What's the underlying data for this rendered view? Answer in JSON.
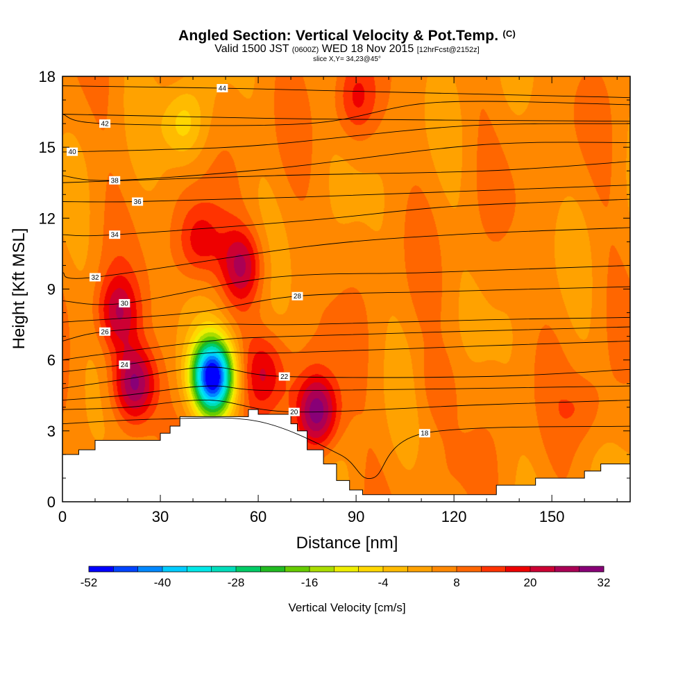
{
  "header": {
    "title_main": "Angled Section: Vertical Velocity & Pot.Temp.",
    "title_suffix": "(C)",
    "valid_prefix": "Valid 1500 JST",
    "valid_utc": "(0600Z)",
    "valid_date": "WED 18 Nov 2015",
    "valid_fcst": "[12hrFcst@2152z]",
    "slice": "slice X,Y= 34,23@45°"
  },
  "chart_data": {
    "type": "heatmap",
    "xlabel": "Distance [nm]",
    "ylabel": "Height [Kft MSL]",
    "xlim": [
      0,
      174
    ],
    "ylim": [
      0,
      18
    ],
    "x_ticks": [
      "0",
      "30",
      "60",
      "90",
      "120",
      "150"
    ],
    "x_tick_values": [
      0,
      30,
      60,
      90,
      120,
      150
    ],
    "y_ticks": [
      "0",
      "3",
      "6",
      "9",
      "12",
      "15",
      "18"
    ],
    "y_tick_values": [
      0,
      3,
      6,
      9,
      12,
      15,
      18
    ],
    "grid": false,
    "colorbar": {
      "label": "Vertical Velocity [cm/s]",
      "placement": "bottom",
      "tick_labels": [
        "-52",
        "-40",
        "-28",
        "-16",
        "-4",
        "8",
        "20",
        "32"
      ],
      "tick_values": [
        -52,
        -40,
        -28,
        -16,
        -4,
        8,
        20,
        32
      ],
      "min": -52,
      "max": 32,
      "step": 4,
      "colors": [
        "#0000ff",
        "#0044ff",
        "#0088ff",
        "#00ccff",
        "#00e8e8",
        "#00ddbb",
        "#00cc66",
        "#22bb22",
        "#66cc00",
        "#aadd00",
        "#eeee00",
        "#ffd700",
        "#ffbb00",
        "#ffa200",
        "#ff8800",
        "#ff6600",
        "#ff3300",
        "#ee0000",
        "#cc0033",
        "#aa0055",
        "#880077"
      ]
    },
    "velocity_centers": [
      {
        "x": 46,
        "y": 5.3,
        "value": -52
      },
      {
        "x": 78,
        "y": 3.8,
        "value": 32
      },
      {
        "x": 22,
        "y": 5.0,
        "value": 30
      },
      {
        "x": 55,
        "y": 10.0,
        "value": 24
      },
      {
        "x": 17,
        "y": 8.0,
        "value": 22
      },
      {
        "x": 42,
        "y": 11.0,
        "value": 18
      },
      {
        "x": 62,
        "y": 5.5,
        "value": 18
      },
      {
        "x": 90,
        "y": 17.0,
        "value": 15
      },
      {
        "x": 37,
        "y": 16.0,
        "value": -6
      },
      {
        "x": 160,
        "y": 4.0,
        "value": 12
      },
      {
        "x": 115,
        "y": 5.0,
        "value": 10
      }
    ],
    "terrain": [
      [
        0,
        2
      ],
      [
        5,
        2.2
      ],
      [
        10,
        2.6
      ],
      [
        20,
        2.6
      ],
      [
        28,
        2.6
      ],
      [
        30,
        2.9
      ],
      [
        33,
        3.2
      ],
      [
        36,
        3.6
      ],
      [
        55,
        3.6
      ],
      [
        57,
        3.9
      ],
      [
        60,
        3.7
      ],
      [
        70,
        3.3
      ],
      [
        72,
        3.0
      ],
      [
        75,
        2.2
      ],
      [
        80,
        1.6
      ],
      [
        84,
        0.9
      ],
      [
        88,
        0.5
      ],
      [
        92,
        0.3
      ],
      [
        130,
        0.3
      ],
      [
        133,
        0.7
      ],
      [
        143,
        0.7
      ],
      [
        145,
        1.0
      ],
      [
        160,
        1.3
      ],
      [
        165,
        1.6
      ],
      [
        174,
        1.6
      ]
    ],
    "isentropes": [
      {
        "value": 44,
        "label": true,
        "label_x": 49,
        "points": [
          [
            0,
            17.6
          ],
          [
            49,
            17.5
          ],
          [
            80,
            17.4
          ],
          [
            174,
            17.1
          ]
        ]
      },
      {
        "value": 42,
        "label": true,
        "label_x": 13,
        "points": [
          [
            0,
            16.4
          ],
          [
            13,
            16.0
          ],
          [
            75,
            16.0
          ],
          [
            115,
            16.9
          ],
          [
            174,
            16.8
          ]
        ]
      },
      {
        "value": 42,
        "label": false,
        "label_x": 75,
        "points": [
          [
            0,
            16.4
          ],
          [
            75,
            16.2
          ],
          [
            174,
            16.1
          ]
        ]
      },
      {
        "value": 40,
        "label": true,
        "label_x": 3,
        "points": [
          [
            0,
            14.8
          ],
          [
            30,
            14.9
          ],
          [
            62,
            15.1
          ],
          [
            123,
            15.9
          ],
          [
            174,
            16.0
          ]
        ]
      },
      {
        "value": 38,
        "label": true,
        "label_x": 16,
        "points": [
          [
            0,
            13.8
          ],
          [
            16,
            13.6
          ],
          [
            65,
            14.1
          ],
          [
            128,
            15.1
          ],
          [
            174,
            15.2
          ]
        ]
      },
      {
        "value": 38,
        "label": false,
        "label_x": 130,
        "points": [
          [
            0,
            13.5
          ],
          [
            65,
            13.8
          ],
          [
            130,
            14.0
          ],
          [
            174,
            14.4
          ]
        ]
      },
      {
        "value": 36,
        "label": true,
        "label_x": 23,
        "points": [
          [
            0,
            12.7
          ],
          [
            23,
            12.7
          ],
          [
            75,
            12.9
          ],
          [
            174,
            13.4
          ]
        ]
      },
      {
        "value": 34,
        "label": true,
        "label_x": 16,
        "points": [
          [
            0,
            11.3
          ],
          [
            16,
            11.3
          ],
          [
            75,
            11.9
          ],
          [
            120,
            12.5
          ],
          [
            174,
            12.8
          ]
        ]
      },
      {
        "value": 32,
        "label": true,
        "label_x": 10,
        "points": [
          [
            0,
            9.7
          ],
          [
            10,
            9.5
          ],
          [
            75,
            10.8
          ],
          [
            120,
            11.3
          ],
          [
            174,
            11.6
          ]
        ]
      },
      {
        "value": 30,
        "label": true,
        "label_x": 19,
        "points": [
          [
            0,
            8.5
          ],
          [
            19,
            8.4
          ],
          [
            65,
            9.5
          ],
          [
            112,
            9.7
          ],
          [
            174,
            10.0
          ]
        ]
      },
      {
        "value": 28,
        "label": true,
        "label_x": 72,
        "points": [
          [
            0,
            7.6
          ],
          [
            40,
            8.0
          ],
          [
            72,
            8.7
          ],
          [
            117,
            8.9
          ],
          [
            174,
            9.1
          ]
        ]
      },
      {
        "value": 26,
        "label": true,
        "label_x": 13,
        "points": [
          [
            0,
            6.8
          ],
          [
            13,
            7.2
          ],
          [
            45,
            7.5
          ],
          [
            74,
            7.5
          ],
          [
            130,
            7.7
          ],
          [
            174,
            7.8
          ]
        ]
      },
      {
        "value": 26,
        "label": false,
        "label_x": 10,
        "points": [
          [
            0,
            6.0
          ],
          [
            10,
            6.2
          ],
          [
            45,
            6.8
          ],
          [
            70,
            7.0
          ],
          [
            174,
            7.4
          ]
        ]
      },
      {
        "value": 24,
        "label": true,
        "label_x": 19,
        "points": [
          [
            0,
            5.5
          ],
          [
            19,
            5.8
          ],
          [
            45,
            6.3
          ],
          [
            68,
            6.3
          ],
          [
            130,
            6.6
          ],
          [
            174,
            6.8
          ]
        ]
      },
      {
        "value": 22,
        "label": true,
        "label_x": 68,
        "points": [
          [
            0,
            4.8
          ],
          [
            20,
            5.2
          ],
          [
            45,
            5.7
          ],
          [
            68,
            5.3
          ],
          [
            130,
            5.3
          ],
          [
            174,
            5.6
          ]
        ]
      },
      {
        "value": 22,
        "label": false,
        "label_x": 19,
        "points": [
          [
            0,
            4.3
          ],
          [
            19,
            4.5
          ],
          [
            45,
            4.9
          ],
          [
            70,
            4.7
          ],
          [
            174,
            4.9
          ]
        ]
      },
      {
        "value": 20,
        "label": true,
        "label_x": 71,
        "points": [
          [
            0,
            3.9
          ],
          [
            20,
            4.0
          ],
          [
            45,
            4.3
          ],
          [
            71,
            3.8
          ],
          [
            128,
            4.1
          ],
          [
            174,
            4.3
          ]
        ]
      },
      {
        "value": 18,
        "label": true,
        "label_x": 111,
        "points": [
          [
            0,
            3.3
          ],
          [
            30,
            3.5
          ],
          [
            60,
            3.4
          ],
          [
            85,
            2.0
          ],
          [
            95,
            1.0
          ],
          [
            111,
            2.9
          ],
          [
            174,
            3.2
          ]
        ]
      }
    ]
  }
}
